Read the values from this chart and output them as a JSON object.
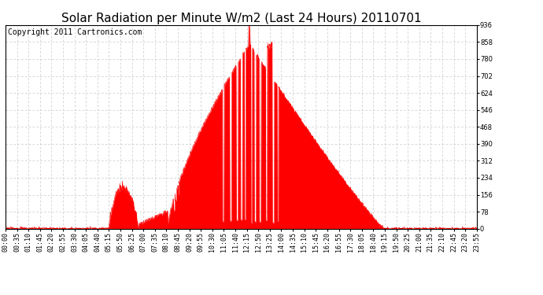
{
  "title": "Solar Radiation per Minute W/m2 (Last 24 Hours) 20110701",
  "copyright": "Copyright 2011 Cartronics.com",
  "background_color": "#ffffff",
  "fill_color": "#ff0000",
  "line_color": "#ff0000",
  "dashed_line_color": "#ff0000",
  "grid_color": "#c8c8c8",
  "ylim": [
    0.0,
    936.0
  ],
  "yticks": [
    0.0,
    78.0,
    156.0,
    234.0,
    312.0,
    390.0,
    468.0,
    546.0,
    624.0,
    702.0,
    780.0,
    858.0,
    936.0
  ],
  "x_labels": [
    "00:00",
    "00:35",
    "01:10",
    "01:45",
    "02:20",
    "02:55",
    "03:30",
    "04:05",
    "04:40",
    "05:15",
    "05:50",
    "06:25",
    "07:00",
    "07:35",
    "08:10",
    "08:45",
    "09:20",
    "09:55",
    "10:30",
    "11:05",
    "11:40",
    "12:15",
    "12:50",
    "13:25",
    "14:00",
    "14:35",
    "15:10",
    "15:45",
    "16:20",
    "16:55",
    "17:30",
    "18:05",
    "18:40",
    "19:15",
    "19:50",
    "20:25",
    "21:00",
    "21:35",
    "22:10",
    "22:45",
    "23:20",
    "23:55"
  ],
  "num_points": 1440,
  "title_fontsize": 11,
  "copyright_fontsize": 7,
  "tick_fontsize": 6,
  "figwidth": 6.9,
  "figheight": 3.75,
  "dpi": 100
}
